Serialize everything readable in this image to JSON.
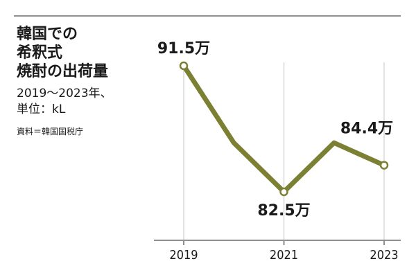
{
  "title_lines": [
    "韓国での",
    "希釈式",
    "焼酎の出荷量"
  ],
  "subtitle_lines": [
    "2019〜2023年、",
    "単位：kL"
  ],
  "source": "資料＝韓国国税庁",
  "colors": {
    "line": "#7b8033",
    "rule": "#8f8f8f",
    "text": "#1a1a1a",
    "vgrid": "#d8d8d8"
  },
  "chart_data": {
    "type": "line",
    "title": "韓国での希釈式焼酎の出荷量",
    "x": [
      2019,
      2020,
      2021,
      2022,
      2023
    ],
    "x_tick_labels": [
      "2019",
      "2021",
      "2023"
    ],
    "series": [
      {
        "values": [
          915000,
          860000,
          825000,
          860000,
          844000
        ]
      }
    ],
    "data_labels": [
      {
        "index": 0,
        "text": "91.5万"
      },
      {
        "index": 2,
        "text": "82.5万"
      },
      {
        "index": 4,
        "text": "84.4万"
      }
    ],
    "ylim": [
      815000,
      925000
    ],
    "grid": "vertical lines at labeled years"
  }
}
